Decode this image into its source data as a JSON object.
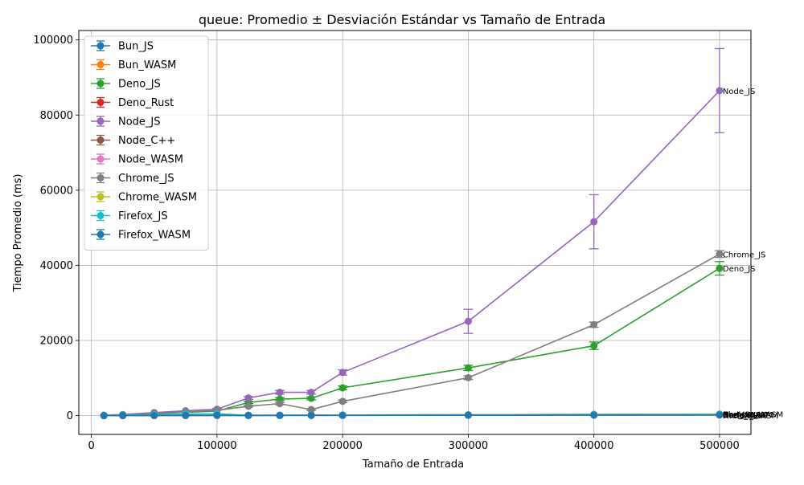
{
  "chart_data": {
    "type": "line",
    "title": "queue: Promedio ± Desviación Estándar vs Tamaño de Entrada",
    "xlabel": "Tamaño de Entrada",
    "ylabel": "Tiempo Promedio (ms)",
    "xlim": [
      -10000,
      525000
    ],
    "ylim": [
      -5000,
      102500
    ],
    "x_ticks": [
      0,
      100000,
      200000,
      300000,
      400000,
      500000
    ],
    "x_tick_labels": [
      "0",
      "100000",
      "200000",
      "300000",
      "400000",
      "500000"
    ],
    "y_ticks": [
      0,
      20000,
      40000,
      60000,
      80000,
      100000
    ],
    "y_tick_labels": [
      "0",
      "20000",
      "40000",
      "60000",
      "80000",
      "100000"
    ],
    "grid": true,
    "legend_position": "upper-left",
    "x": [
      10000,
      25000,
      50000,
      75000,
      100000,
      125000,
      150000,
      175000,
      200000,
      300000,
      400000,
      500000
    ],
    "series": [
      {
        "name": "Bun_JS",
        "color": "#1f77b4",
        "values": [
          10,
          20,
          40,
          60,
          80,
          100,
          120,
          140,
          160,
          250,
          330,
          420
        ],
        "err": [
          2,
          3,
          5,
          6,
          8,
          10,
          12,
          14,
          16,
          20,
          25,
          30
        ]
      },
      {
        "name": "Bun_WASM",
        "color": "#ff7f0e",
        "values": [
          8,
          15,
          30,
          45,
          60,
          75,
          90,
          105,
          120,
          180,
          240,
          300
        ],
        "err": [
          2,
          3,
          4,
          5,
          6,
          7,
          8,
          9,
          10,
          14,
          18,
          22
        ]
      },
      {
        "name": "Deno_JS",
        "color": "#2ca02c",
        "values": [
          50,
          150,
          500,
          900,
          1200,
          3500,
          4400,
          4600,
          7400,
          12700,
          18600,
          39200
        ],
        "err": [
          10,
          30,
          60,
          100,
          150,
          300,
          400,
          400,
          500,
          700,
          1000,
          1800
        ]
      },
      {
        "name": "Deno_Rust",
        "color": "#d62728",
        "values": [
          5,
          10,
          20,
          30,
          40,
          50,
          60,
          70,
          80,
          120,
          160,
          200
        ],
        "err": [
          1,
          2,
          3,
          4,
          5,
          6,
          7,
          8,
          9,
          12,
          15,
          18
        ]
      },
      {
        "name": "Node_JS",
        "color": "#9467bd",
        "values": [
          100,
          300,
          800,
          1300,
          1700,
          4700,
          6200,
          6200,
          11500,
          25100,
          51600,
          86500
        ],
        "err": [
          20,
          50,
          100,
          150,
          200,
          400,
          500,
          500,
          700,
          3200,
          7200,
          11200
        ]
      },
      {
        "name": "Node_C++",
        "color": "#8c564b",
        "values": [
          6,
          12,
          25,
          38,
          50,
          62,
          75,
          88,
          100,
          150,
          200,
          250
        ],
        "err": [
          1,
          2,
          3,
          4,
          5,
          6,
          7,
          8,
          9,
          12,
          15,
          18
        ]
      },
      {
        "name": "Node_WASM",
        "color": "#e377c2",
        "values": [
          9,
          18,
          35,
          52,
          70,
          88,
          105,
          122,
          140,
          210,
          280,
          350
        ],
        "err": [
          2,
          3,
          4,
          5,
          6,
          7,
          8,
          9,
          10,
          14,
          18,
          22
        ]
      },
      {
        "name": "Chrome_JS",
        "color": "#7f7f7f",
        "values": [
          80,
          200,
          600,
          1000,
          1400,
          2500,
          3200,
          1600,
          3800,
          10100,
          24200,
          43000
        ],
        "err": [
          15,
          40,
          80,
          120,
          160,
          250,
          300,
          200,
          350,
          500,
          700,
          900
        ]
      },
      {
        "name": "Chrome_WASM",
        "color": "#bcbd22",
        "values": [
          10,
          20,
          40,
          60,
          80,
          100,
          120,
          140,
          160,
          240,
          320,
          400
        ],
        "err": [
          2,
          3,
          5,
          6,
          8,
          10,
          12,
          14,
          16,
          20,
          25,
          30
        ]
      },
      {
        "name": "Firefox_JS",
        "color": "#17becf",
        "values": [
          60,
          120,
          250,
          380,
          500,
          100,
          110,
          120,
          130,
          180,
          240,
          300
        ],
        "err": [
          10,
          20,
          30,
          40,
          50,
          15,
          15,
          15,
          15,
          20,
          25,
          30
        ]
      },
      {
        "name": "Firefox_WASM",
        "color": "#1f77b4",
        "values": [
          12,
          24,
          48,
          72,
          96,
          40,
          50,
          60,
          70,
          100,
          130,
          160
        ],
        "err": [
          2,
          3,
          5,
          6,
          8,
          5,
          6,
          7,
          8,
          10,
          12,
          14
        ]
      }
    ]
  }
}
